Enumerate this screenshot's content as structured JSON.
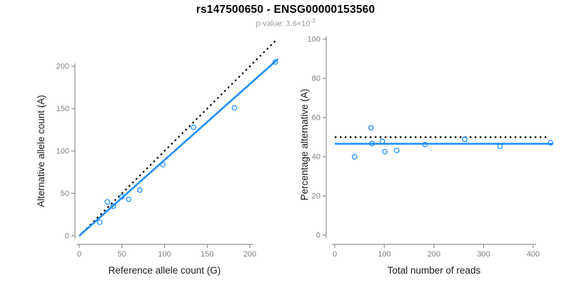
{
  "title": "rs147500650 - ENSG00000153560",
  "subtitle": {
    "full_text": "p-value: 3.6×10^-3",
    "prefix": "p-value: 3.6×10",
    "exponent": "-3"
  },
  "colors": {
    "accent_blue": "#1E90FF",
    "dotted_black": "#000000",
    "axis_line": "#8f8f8f",
    "tick_label": "#808080",
    "axis_title": "#1a1a1a",
    "subtitle_gray": "#9b9b9b",
    "background": "#ffffff"
  },
  "chart_data": [
    {
      "type": "scatter",
      "panel": "left",
      "title": "",
      "xlabel": "Reference allele count (G)",
      "ylabel": "Alternative allele count (A)",
      "xlim": [
        0,
        235
      ],
      "ylim": [
        0,
        232
      ],
      "xticks": [
        0,
        50,
        100,
        150,
        200
      ],
      "yticks": [
        0,
        50,
        100,
        150,
        200
      ],
      "grid": false,
      "legend": null,
      "marker": "open-circle",
      "points": [
        [
          24,
          16
        ],
        [
          33,
          40
        ],
        [
          40,
          35
        ],
        [
          50,
          46
        ],
        [
          58,
          43
        ],
        [
          71,
          54
        ],
        [
          98,
          84
        ],
        [
          134,
          128
        ],
        [
          182,
          151
        ],
        [
          230,
          205
        ]
      ],
      "lines": [
        {
          "name": "identity",
          "style": "dotted",
          "color": "#000000",
          "from": [
            0,
            0
          ],
          "to": [
            231,
            231
          ]
        },
        {
          "name": "fit",
          "style": "solid",
          "color": "#1E90FF",
          "from": [
            0,
            0
          ],
          "to": [
            233,
            208.5
          ]
        }
      ]
    },
    {
      "type": "scatter",
      "panel": "right",
      "title": "",
      "xlabel": "Total number of reads",
      "ylabel": "Percentage alternative (A)",
      "xlim": [
        0,
        440
      ],
      "ylim": [
        0,
        100
      ],
      "xticks": [
        0,
        100,
        200,
        300,
        400
      ],
      "yticks": [
        0,
        20,
        40,
        60,
        80,
        100
      ],
      "grid": false,
      "legend": null,
      "marker": "open-circle",
      "points": [
        [
          40,
          40.0
        ],
        [
          73,
          54.8
        ],
        [
          75,
          46.7
        ],
        [
          96,
          47.9
        ],
        [
          101,
          42.6
        ],
        [
          125,
          43.2
        ],
        [
          182,
          46.2
        ],
        [
          262,
          48.9
        ],
        [
          333,
          45.3
        ],
        [
          435,
          47.1
        ]
      ],
      "lines": [
        {
          "name": "expected-50pct",
          "style": "dotted",
          "color": "#000000",
          "from": [
            0,
            50
          ],
          "to": [
            433,
            50
          ]
        },
        {
          "name": "observed-mean",
          "style": "solid",
          "color": "#1E90FF",
          "from": [
            0,
            46.6
          ],
          "to": [
            440,
            46.6
          ]
        }
      ]
    }
  ]
}
